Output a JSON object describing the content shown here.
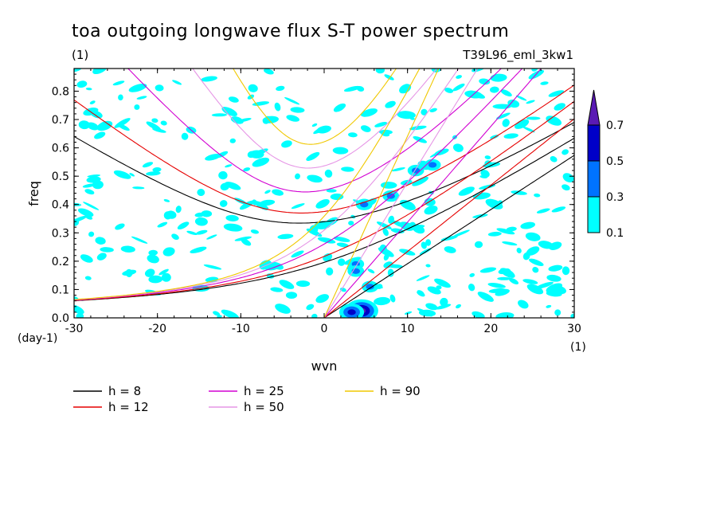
{
  "chart_data": {
    "type": "heatmap",
    "title": "toa outgoing longwave flux S-T power spectrum",
    "units_label": "(1)",
    "run_label": "T39L96_eml_3kw1",
    "xlabel": "wvn",
    "ylabel": "freq",
    "x_unit": "(1)",
    "y_unit": "(day-1)",
    "xlim": [
      -30,
      30
    ],
    "ylim": [
      0,
      0.88
    ],
    "x_ticks": [
      -30,
      -20,
      -10,
      0,
      10,
      20,
      30
    ],
    "y_ticks": [
      0.0,
      0.1,
      0.2,
      0.3,
      0.4,
      0.5,
      0.6,
      0.7,
      0.8
    ],
    "x_tick_labels": [
      "-30",
      "-20",
      "-10",
      "0",
      "10",
      "20",
      "30"
    ],
    "y_tick_labels": [
      "0.0",
      "0.1",
      "0.2",
      "0.3",
      "0.4",
      "0.5",
      "0.6",
      "0.7",
      "0.8"
    ],
    "colorbar": {
      "levels": [
        0.1,
        0.3,
        0.5,
        0.7
      ],
      "level_labels": [
        "0.1",
        "0.3",
        "0.5",
        "0.7"
      ],
      "colors": [
        "#00ffff",
        "#0073ff",
        "#0000c8",
        "#5a1ab4"
      ]
    },
    "dispersion_curves": [
      {
        "name": "h =  8",
        "h": 8,
        "color": "#000000"
      },
      {
        "name": "h = 12",
        "h": 12,
        "color": "#e60000"
      },
      {
        "name": "h = 25",
        "h": 25,
        "color": "#d200d2"
      },
      {
        "name": "h = 50",
        "h": 50,
        "color": "#e696e6"
      },
      {
        "name": "h = 90",
        "h": 90,
        "color": "#f0c800"
      }
    ],
    "contour_blobs": [
      {
        "x": 4.5,
        "y": 0.025,
        "level": 3
      },
      {
        "x": 3.3,
        "y": 0.02,
        "level": 2
      },
      {
        "x": 3.8,
        "y": 0.19,
        "level": 1
      },
      {
        "x": 3.8,
        "y": 0.165,
        "level": 1
      },
      {
        "x": 5.5,
        "y": 0.11,
        "level": 1
      },
      {
        "x": 4.8,
        "y": 0.4,
        "level": 1
      },
      {
        "x": 8.0,
        "y": 0.43,
        "level": 1
      },
      {
        "x": 11.0,
        "y": 0.52,
        "level": 1
      },
      {
        "x": 13.0,
        "y": 0.54,
        "level": 1
      }
    ]
  }
}
